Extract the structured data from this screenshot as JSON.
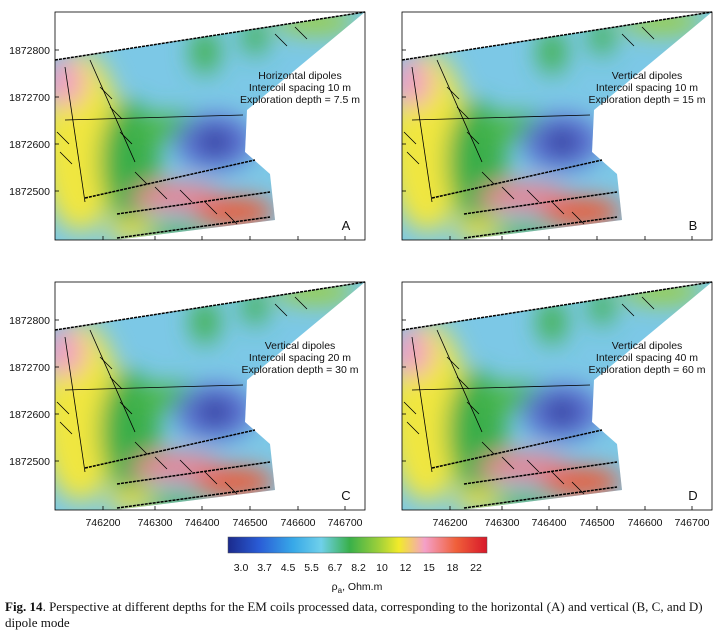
{
  "panels": [
    {
      "letter": "A",
      "annotation": [
        "Horizontal dipoles",
        "Intercoil spacing 10 m",
        "Exploration depth = 7.5 m"
      ]
    },
    {
      "letter": "B",
      "annotation": [
        "Vertical dipoles",
        "Intercoil spacing 10 m",
        "Exploration depth = 15 m"
      ]
    },
    {
      "letter": "C",
      "annotation": [
        "Vertical dipoles",
        "Intercoil spacing 20 m",
        "Exploration depth = 30 m"
      ]
    },
    {
      "letter": "D",
      "annotation": [
        "Vertical dipoles",
        "Intercoil spacing 40 m",
        "Exploration depth = 60 m"
      ]
    }
  ],
  "y_ticks": [
    "1872800",
    "1872700",
    "1872600",
    "1872500"
  ],
  "x_ticks": [
    "746200",
    "746300",
    "746400",
    "746500",
    "746600",
    "746700"
  ],
  "colorbar": {
    "ticks": [
      "3.0",
      "3.7",
      "4.5",
      "5.5",
      "6.7",
      "8.2",
      "10",
      "12",
      "15",
      "18",
      "22"
    ],
    "label": {
      "symbol": "ρ",
      "subscript": "a",
      "unit": ", Ohm.m"
    }
  },
  "caption": {
    "label": "Fig. 14",
    "text": ". Perspective at different depths for the EM coils processed data, corresponding to the horizontal (A) and vertical (B, C, and D) dipole mode"
  }
}
